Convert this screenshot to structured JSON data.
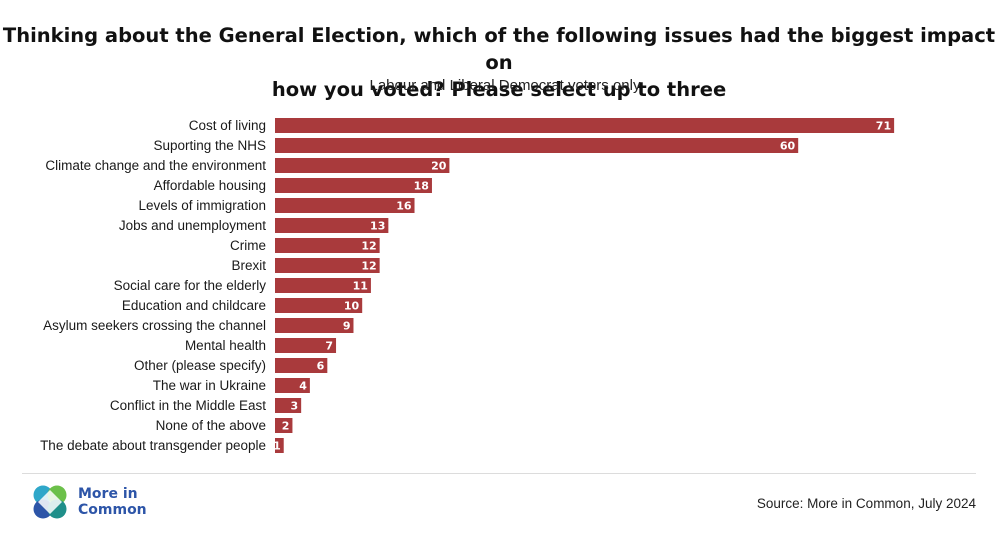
{
  "title_line1": "Thinking about the General Election, which of the following issues had the biggest impact on",
  "title_line2": "how you voted? Please select up to three",
  "subtitle": "Labour and Liberal Democrat voters only",
  "chart_data": {
    "type": "bar",
    "orientation": "horizontal",
    "title": "Thinking about the General Election, which of the following issues had the biggest impact on how you voted? Please select up to three",
    "subtitle": "Labour and Liberal Democrat voters only",
    "categories": [
      "Cost of living",
      "Suporting the NHS",
      "Climate change and the environment",
      "Affordable housing",
      "Levels of immigration",
      "Jobs and unemployment",
      "Crime",
      "Brexit",
      "Social care for the elderly",
      "Education and childcare",
      "Asylum seekers crossing the channel",
      "Mental health",
      "Other (please specify)",
      "The war in Ukraine",
      "Conflict in the Middle East",
      "None of the above",
      "The debate about transgender people"
    ],
    "values": [
      71,
      60,
      20,
      18,
      16,
      13,
      12,
      12,
      11,
      10,
      9,
      7,
      6,
      4,
      3,
      2,
      1
    ],
    "xlim": [
      0,
      72
    ],
    "xlabel": "",
    "ylabel": "",
    "grid": false,
    "bar_color": "#a93a3c"
  },
  "logo": {
    "line1": "More in",
    "line2": "Common",
    "icon": "more-in-common-logo-icon"
  },
  "source": "Source: More in Common, July 2024"
}
